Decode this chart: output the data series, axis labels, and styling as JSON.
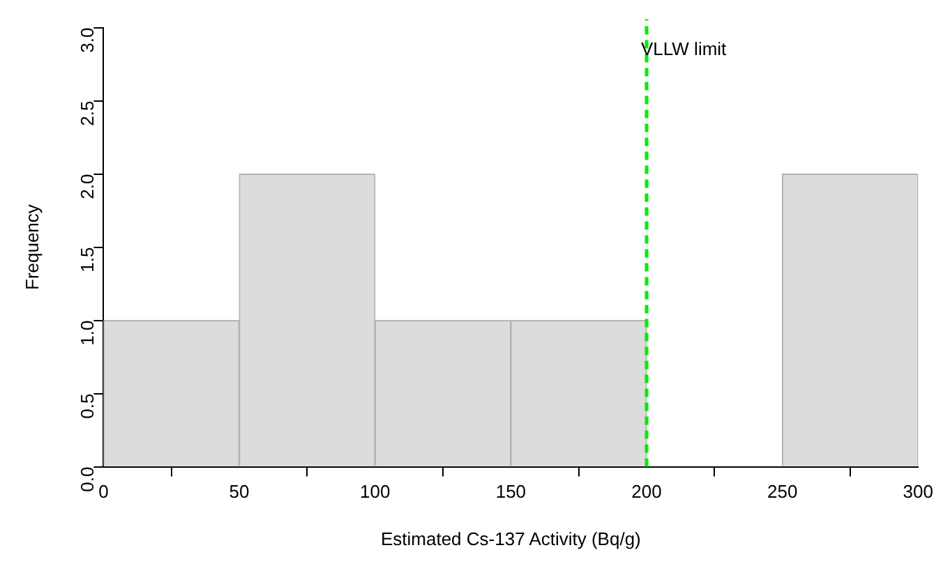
{
  "chart_data": {
    "type": "histogram",
    "xlabel": "Estimated Cs-137 Activity (Bq/g)",
    "ylabel": "Frequency",
    "bins": [
      0,
      50,
      100,
      150,
      200,
      250,
      300
    ],
    "values": [
      1,
      2,
      1,
      1,
      0,
      2
    ],
    "color": "#dcdcdc",
    "xlim": [
      0,
      300
    ],
    "xticks": [
      0,
      50,
      100,
      150,
      200,
      250,
      300
    ],
    "ylim": [
      0,
      3
    ],
    "yticks": [
      {
        "value": 0,
        "label": "0.0"
      },
      0.5,
      {
        "value": 1,
        "label": "1.0"
      },
      1.5,
      {
        "value": 2,
        "label": "2.0"
      },
      2.5,
      {
        "value": 3,
        "label": "3.0"
      }
    ],
    "ref_lines": [
      {
        "axis": "x",
        "value": 200,
        "label": "VLLW limit",
        "color": "#00ee00",
        "line_style": "dashed"
      }
    ],
    "grid": false,
    "legend": false
  }
}
